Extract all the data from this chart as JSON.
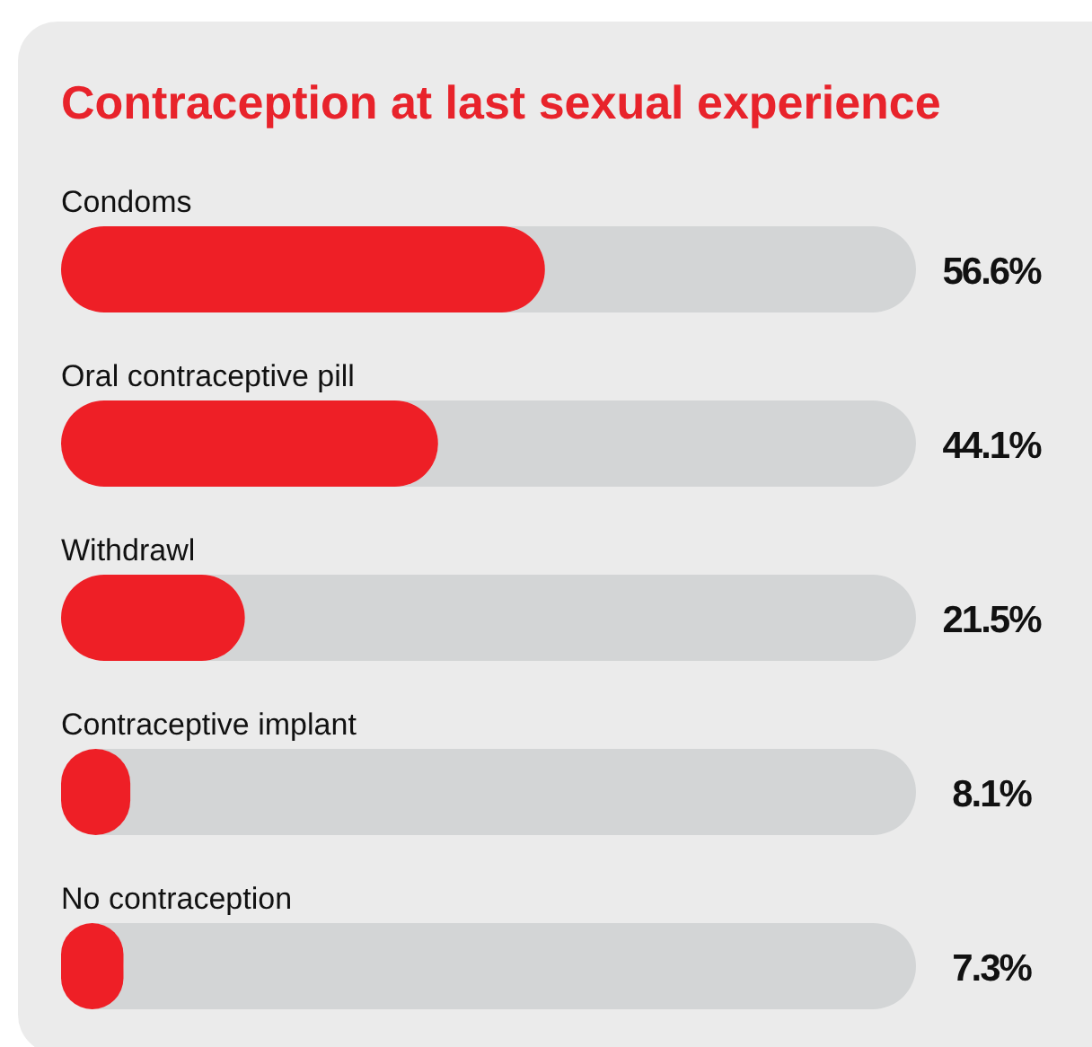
{
  "chart_data": {
    "type": "bar",
    "orientation": "horizontal",
    "title": "Contraception at last sexual experience",
    "categories": [
      "Condoms",
      "Oral contraceptive pill",
      "Withdrawl",
      "Contraceptive implant",
      "No contraception"
    ],
    "values": [
      56.6,
      44.1,
      21.5,
      8.1,
      7.3
    ],
    "value_labels": [
      "56.6%",
      "44.1%",
      "21.5%",
      "8.1%",
      "7.3%"
    ],
    "color": "#ee1f26",
    "xlim": [
      0,
      100
    ],
    "tick_labels": false
  }
}
